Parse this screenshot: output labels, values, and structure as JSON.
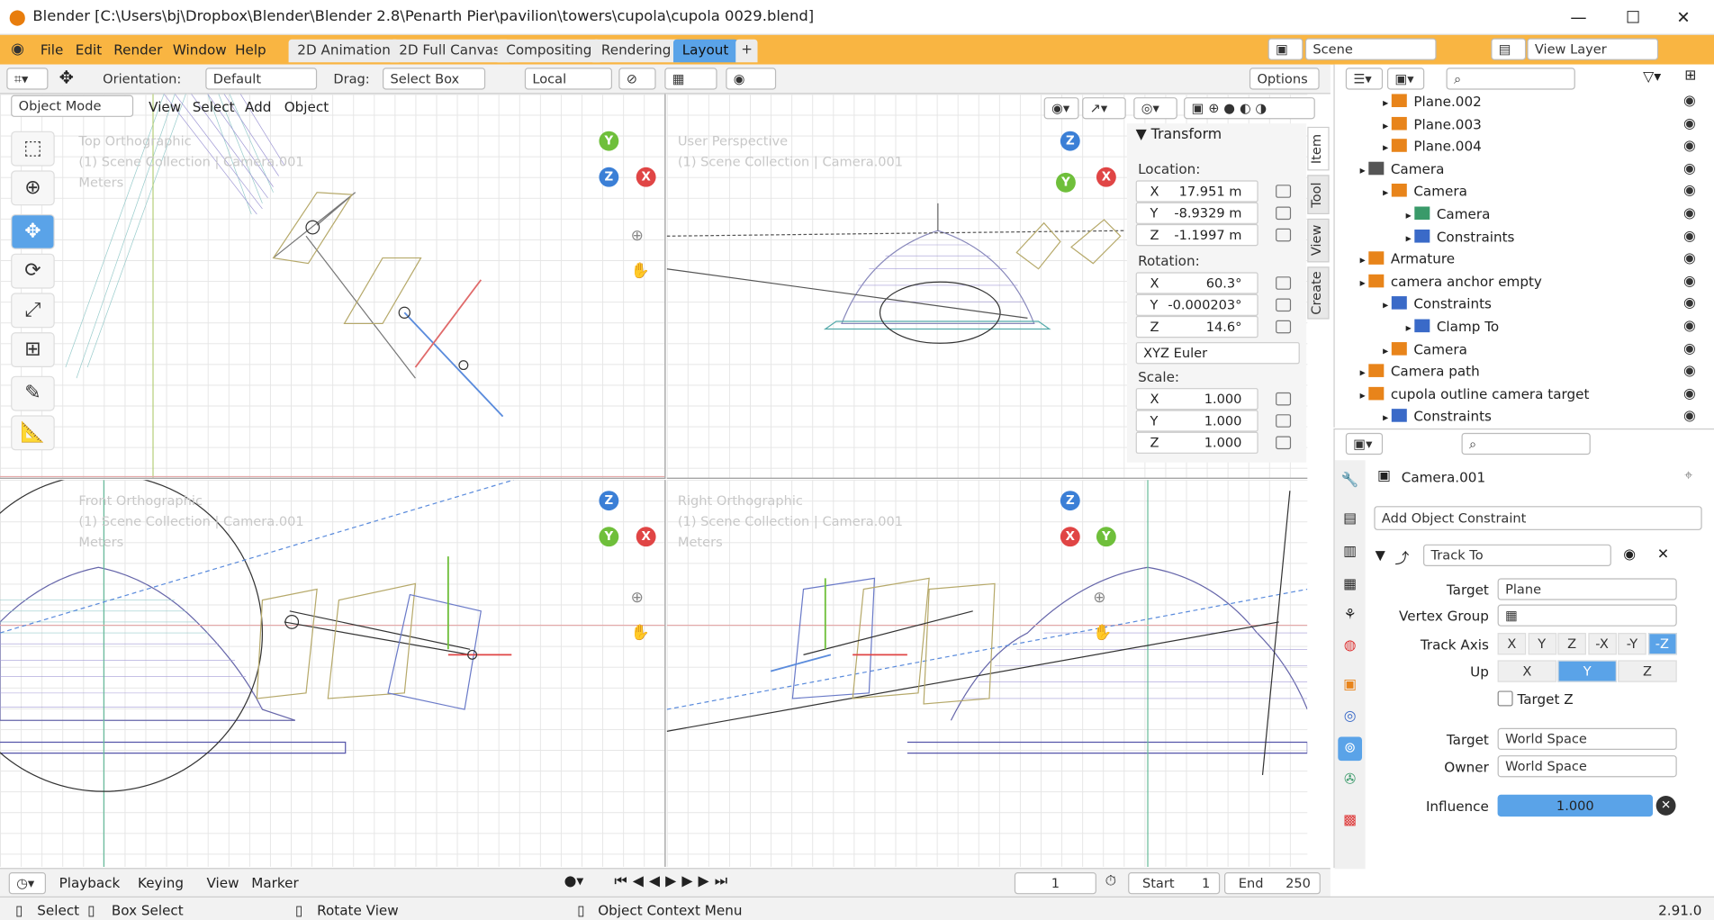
{
  "window": {
    "title": "Blender [C:\\Users\\bj\\Dropbox\\Blender\\Blender 2.8\\Penarth Pier\\pavilion\\towers\\cupola\\cupola 0029.blend]",
    "minimize": "—",
    "maximize": "☐",
    "close": "✕"
  },
  "menu": [
    "File",
    "Edit",
    "Render",
    "Window",
    "Help"
  ],
  "workspaces": [
    "2D Animation",
    "2D Full Canvas",
    "Compositing",
    "Rendering",
    "Layout"
  ],
  "add_tab": "+",
  "scene": "Scene",
  "view_layer": "View Layer",
  "toolbar": {
    "orientation_label": "Orientation:",
    "orientation_value": "Default",
    "drag_label": "Drag:",
    "drag_value": "Select Box",
    "pivot": "Local",
    "options": "Options"
  },
  "viewport_header": {
    "mode": "Object Mode",
    "view": "View",
    "select": "Select",
    "add": "Add",
    "object": "Object"
  },
  "viewports": [
    {
      "name": "Top Orthographic",
      "collection": "(1) Scene Collection | Camera.001",
      "units": "Meters"
    },
    {
      "name": "User Perspective",
      "collection": "(1) Scene Collection | Camera.001",
      "units": ""
    },
    {
      "name": "Front Orthographic",
      "collection": "(1) Scene Collection | Camera.001",
      "units": "Meters"
    },
    {
      "name": "Right Orthographic",
      "collection": "(1) Scene Collection | Camera.001",
      "units": "Meters"
    }
  ],
  "npanel": {
    "title": "Transform",
    "location_label": "Location:",
    "location": [
      {
        "axis": "X",
        "value": "17.951 m"
      },
      {
        "axis": "Y",
        "value": "-8.9329 m"
      },
      {
        "axis": "Z",
        "value": "-1.1997 m"
      }
    ],
    "rotation_label": "Rotation:",
    "rotation": [
      {
        "axis": "X",
        "value": "60.3°"
      },
      {
        "axis": "Y",
        "value": "-0.000203°"
      },
      {
        "axis": "Z",
        "value": "14.6°"
      }
    ],
    "rotation_mode": "XYZ Euler",
    "scale_label": "Scale:",
    "scale": [
      {
        "axis": "X",
        "value": "1.000"
      },
      {
        "axis": "Y",
        "value": "1.000"
      },
      {
        "axis": "Z",
        "value": "1.000"
      }
    ],
    "tabs": [
      "Item",
      "Tool",
      "View",
      "Create"
    ]
  },
  "outliner": [
    {
      "label": "Plane.002",
      "depth": 2,
      "color": "#e8841a"
    },
    {
      "label": "Plane.003",
      "depth": 2,
      "color": "#e8841a"
    },
    {
      "label": "Plane.004",
      "depth": 2,
      "color": "#e8841a"
    },
    {
      "label": "Camera",
      "depth": 1,
      "color": "#555555"
    },
    {
      "label": "Camera",
      "depth": 2,
      "color": "#e8841a"
    },
    {
      "label": "Camera",
      "depth": 3,
      "color": "#3a9a6a"
    },
    {
      "label": "Constraints",
      "depth": 3,
      "color": "#3a6ac8"
    },
    {
      "label": "Armature",
      "depth": 1,
      "color": "#e8841a"
    },
    {
      "label": "camera anchor empty",
      "depth": 1,
      "color": "#e8841a"
    },
    {
      "label": "Constraints",
      "depth": 2,
      "color": "#3a6ac8"
    },
    {
      "label": "Clamp To",
      "depth": 3,
      "color": "#3a6ac8"
    },
    {
      "label": "Camera",
      "depth": 2,
      "color": "#e8841a"
    },
    {
      "label": "Camera path",
      "depth": 1,
      "color": "#e8841a"
    },
    {
      "label": "cupola outline camera target",
      "depth": 1,
      "color": "#e8841a"
    },
    {
      "label": "Constraints",
      "depth": 2,
      "color": "#3a6ac8"
    }
  ],
  "properties": {
    "object": "Camera.001",
    "add_constraint": "Add Object Constraint",
    "constraint_name": "Track To",
    "target_label": "Target",
    "target_value": "Plane",
    "vertex_group_label": "Vertex Group",
    "track_axis_label": "Track Axis",
    "track_axes": [
      "X",
      "Y",
      "Z",
      "-X",
      "-Y",
      "-Z"
    ],
    "track_axis_selected": "-Z",
    "up_label": "Up",
    "up_axes": [
      "X",
      "Y",
      "Z"
    ],
    "up_selected": "Y",
    "target_z": "Target Z",
    "target_space_label": "Target",
    "target_space": "World Space",
    "owner_space_label": "Owner",
    "owner_space": "World Space",
    "influence_label": "Influence",
    "influence": "1.000"
  },
  "timeline": {
    "playback": "Playback",
    "keying": "Keying",
    "view": "View",
    "marker": "Marker",
    "current_frame": "1",
    "start_label": "Start",
    "start": "1",
    "end_label": "End",
    "end": "250"
  },
  "status": {
    "select": "Select",
    "box_select": "Box Select",
    "rotate_view": "Rotate View",
    "context_menu": "Object Context Menu",
    "version": "2.91.0"
  }
}
